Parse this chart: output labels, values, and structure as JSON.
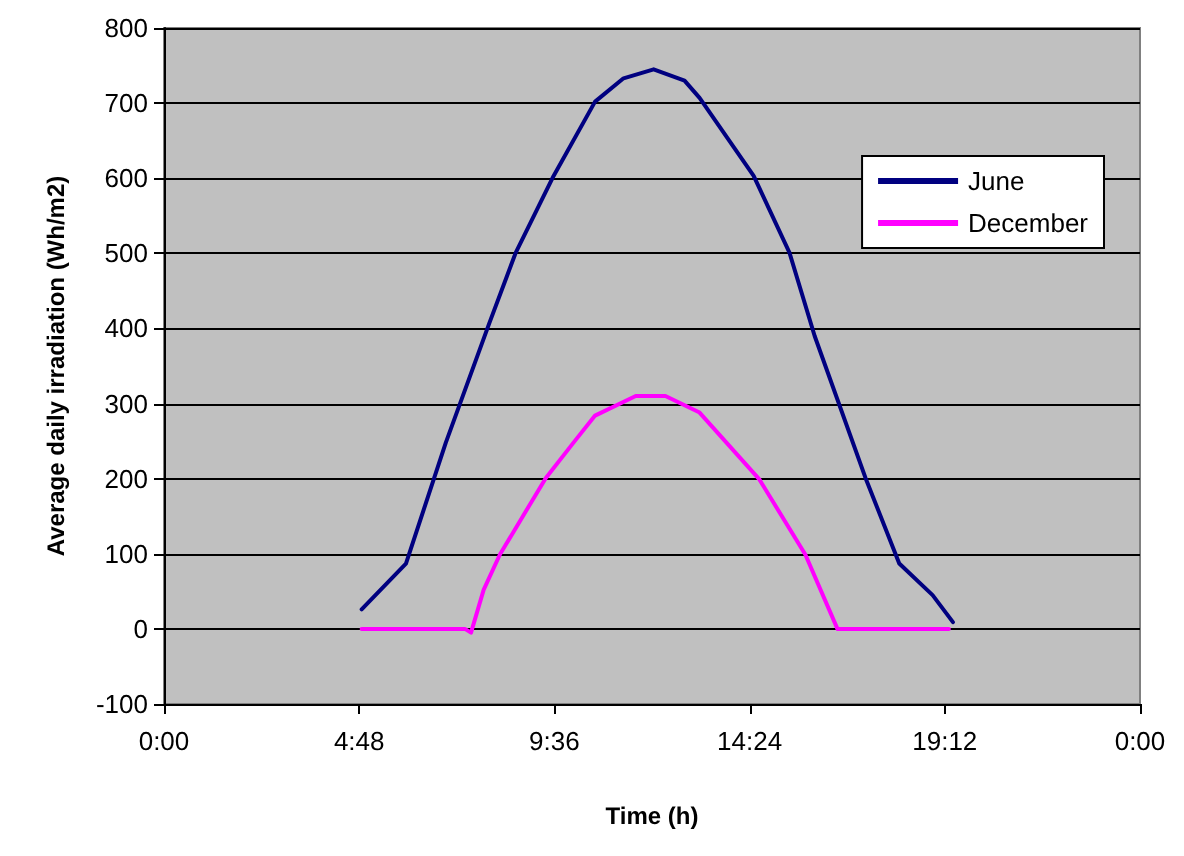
{
  "chart_data": {
    "type": "line",
    "xlabel": "Time (h)",
    "ylabel": "Average daily irradiation (Wh/m2)",
    "xlim": [
      0,
      24
    ],
    "xticks": [
      {
        "value": 0,
        "label": "0:00"
      },
      {
        "value": 4.8,
        "label": "4:48"
      },
      {
        "value": 9.6,
        "label": "9:36"
      },
      {
        "value": 14.4,
        "label": "14:24"
      },
      {
        "value": 19.2,
        "label": "19:12"
      },
      {
        "value": 24,
        "label": "0:00"
      }
    ],
    "ylim": [
      -100,
      800
    ],
    "yticks": [
      -100,
      0,
      100,
      200,
      300,
      400,
      500,
      600,
      700,
      800
    ],
    "grid": "y",
    "legend": "top right",
    "marker": "none",
    "line_style": "solid",
    "series": [
      {
        "name": "June",
        "color": "#000080",
        "x": [
          4.86,
          5.95,
          6.93,
          8.0,
          8.65,
          9.58,
          10.6,
          11.3,
          12.04,
          12.8,
          13.17,
          14.5,
          15.38,
          16.0,
          17.25,
          18.08,
          18.9,
          19.4
        ],
        "values": [
          26,
          87,
          248,
          407,
          501,
          603,
          702,
          733,
          745,
          730,
          707,
          603,
          501,
          390,
          201,
          87,
          45,
          9
        ]
      },
      {
        "name": "December",
        "color": "#ff00ff",
        "x": [
          4.86,
          7.4,
          7.55,
          7.86,
          8.26,
          9.39,
          10.07,
          10.6,
          11.6,
          12.33,
          13.17,
          14.64,
          15.77,
          16.56,
          19.3
        ],
        "values": [
          0,
          0,
          -5,
          52,
          99,
          201,
          248,
          284,
          310,
          310,
          288,
          199,
          99,
          0,
          0
        ]
      }
    ]
  }
}
